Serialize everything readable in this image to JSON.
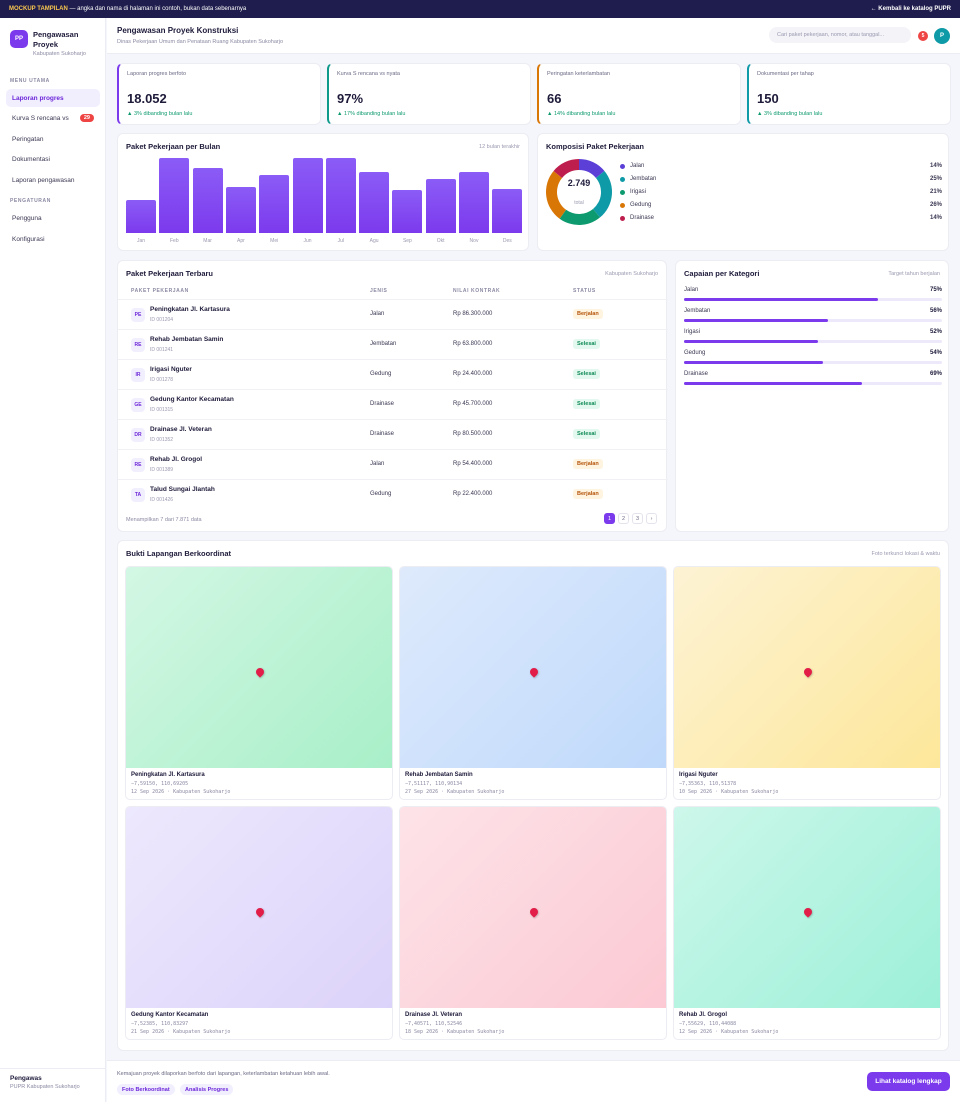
{
  "topbar": {
    "mockup_label": "MOCKUP TAMPILAN",
    "mockup_text": " — angka dan nama di halaman ini contoh, bukan data sebenarnya",
    "back_link": "← Kembali ke katalog PUPR"
  },
  "sidebar": {
    "brand": {
      "logo": "PP",
      "name": "Pengawasan Proyek",
      "sub": "Kabupaten Sukoharjo"
    },
    "section_main": "MENU UTAMA",
    "items_main": [
      {
        "label": "Laporan progres"
      },
      {
        "label": "Kurva S rencana vs",
        "badge": "29"
      },
      {
        "label": "Peringatan"
      },
      {
        "label": "Dokumentasi"
      },
      {
        "label": "Laporan pengawasan"
      }
    ],
    "section_settings": "PENGATURAN",
    "items_settings": [
      {
        "label": "Pengguna"
      },
      {
        "label": "Konfigurasi"
      }
    ],
    "footer": {
      "role": "Pengawas",
      "org": "PUPR Kabupaten Sukoharjo"
    }
  },
  "header": {
    "title": "Pengawasan Proyek Konstruksi",
    "subtitle": "Dinas Pekerjaan Umum dan Penataan Ruang Kabupaten Sukoharjo",
    "search_placeholder": "Cari paket pekerjaan, nomor, atau tanggal...",
    "notif_count": "5",
    "avatar": "P"
  },
  "stats": [
    {
      "label": "Laporan progres berfoto",
      "value": "18.052",
      "delta": "▲ 3% dibanding bulan lalu",
      "accent": "#7c3aed"
    },
    {
      "label": "Kurva S rencana vs nyata",
      "value": "97%",
      "delta": "▲ 17% dibanding bulan lalu",
      "accent": "#0e9a8a"
    },
    {
      "label": "Peringatan keterlambatan",
      "value": "66",
      "delta": "▲ 14% dibanding bulan lalu",
      "accent": "#d97706"
    },
    {
      "label": "Dokumentasi per tahap",
      "value": "150",
      "delta": "▲ 3% dibanding bulan lalu",
      "accent": "#0e9aa7"
    }
  ],
  "bar_chart": {
    "title": "Paket Pekerjaan per Bulan",
    "note": "12 bulan terakhir"
  },
  "donut": {
    "title": "Komposisi Paket Pekerjaan",
    "total": "2.749",
    "total_label": "total"
  },
  "table": {
    "title": "Paket Pekerjaan Terbaru",
    "note": "Kabupaten Sukoharjo",
    "headers": [
      "PAKET PEKERJAAN",
      "JENIS",
      "NILAI KONTRAK",
      "STATUS"
    ],
    "rows": [
      {
        "ini": "PE",
        "name": "Peningkatan Jl. Kartasura",
        "id": "ID 001204",
        "jenis": "Jalan",
        "nilai": "Rp 86.300.000",
        "status": "Berjalan"
      },
      {
        "ini": "RE",
        "name": "Rehab Jembatan Samin",
        "id": "ID 001241",
        "jenis": "Jembatan",
        "nilai": "Rp 63.800.000",
        "status": "Selesai"
      },
      {
        "ini": "IR",
        "name": "Irigasi Nguter",
        "id": "ID 001278",
        "jenis": "Gedung",
        "nilai": "Rp 24.400.000",
        "status": "Selesai"
      },
      {
        "ini": "GE",
        "name": "Gedung Kantor Kecamatan",
        "id": "ID 001315",
        "jenis": "Drainase",
        "nilai": "Rp 45.700.000",
        "status": "Selesai"
      },
      {
        "ini": "DR",
        "name": "Drainase Jl. Veteran",
        "id": "ID 001352",
        "jenis": "Drainase",
        "nilai": "Rp 80.500.000",
        "status": "Selesai"
      },
      {
        "ini": "RE",
        "name": "Rehab Jl. Grogol",
        "id": "ID 001389",
        "jenis": "Jalan",
        "nilai": "Rp 54.400.000",
        "status": "Berjalan"
      },
      {
        "ini": "TA",
        "name": "Talud Sungai Jlantah",
        "id": "ID 001426",
        "jenis": "Gedung",
        "nilai": "Rp 22.400.000",
        "status": "Berjalan"
      }
    ],
    "footer": "Menampilkan 7 dari 7.871 data",
    "pages": [
      "1",
      "2",
      "3",
      "›"
    ]
  },
  "capaian": {
    "title": "Capaian per Kategori",
    "note": "Target tahun berjalan",
    "items": [
      {
        "label": "Jalan",
        "pct_text": "75%",
        "value": 75
      },
      {
        "label": "Jembatan",
        "pct_text": "56%",
        "value": 56
      },
      {
        "label": "Irigasi",
        "pct_text": "52%",
        "value": 52
      },
      {
        "label": "Gedung",
        "pct_text": "54%",
        "value": 54
      },
      {
        "label": "Drainase",
        "pct_text": "69%",
        "value": 69
      }
    ]
  },
  "gallery": {
    "title": "Bukti Lapangan Berkoordinat",
    "note": "Foto terkunci lokasi & waktu",
    "photos": [
      {
        "title": "Peningkatan Jl. Kartasura",
        "coord": "−7,59150, 110,69205",
        "meta": "12 Sep 2026 · Kabupaten Sukoharjo",
        "c1": "#d3f7e4",
        "c2": "#a8efc8"
      },
      {
        "title": "Rehab Jembatan Samin",
        "coord": "−7,51117, 110,90134",
        "meta": "27 Sep 2026 · Kabupaten Sukoharjo",
        "c1": "#deeafc",
        "c2": "#bfd9fb"
      },
      {
        "title": "Irigasi Nguter",
        "coord": "−7,35363, 110,51378",
        "meta": "10 Sep 2026 · Kabupaten Sukoharjo",
        "c1": "#fdf3d4",
        "c2": "#fde79a"
      },
      {
        "title": "Gedung Kantor Kecamatan",
        "coord": "−7,52385, 110,83297",
        "meta": "21 Sep 2026 · Kabupaten Sukoharjo",
        "c1": "#ede8fd",
        "c2": "#dcd3fa"
      },
      {
        "title": "Drainase Jl. Veteran",
        "coord": "−7,40571, 110,52546",
        "meta": "18 Sep 2026 · Kabupaten Sukoharjo",
        "c1": "#fde3e8",
        "c2": "#fcc9d3"
      },
      {
        "title": "Rehab Jl. Grogol",
        "coord": "−7,55629, 110,44088",
        "meta": "12 Sep 2026 · Kabupaten Sukoharjo",
        "c1": "#cdf7ea",
        "c2": "#9cf0d8"
      }
    ]
  },
  "footer": {
    "text": "Kemajuan proyek dilaporkan berfoto dari lapangan, keterlambatan ketahuan lebih awal.",
    "chips": [
      "Foto Berkoordinat",
      "Analisis Progres"
    ],
    "cta": "Lihat katalog lengkap"
  },
  "chart_data": [
    {
      "type": "bar",
      "title": "Paket Pekerjaan per Bulan",
      "categories": [
        "Jan",
        "Feb",
        "Mar",
        "Apr",
        "Mei",
        "Jun",
        "Jul",
        "Agu",
        "Sep",
        "Okt",
        "Nov",
        "Des"
      ],
      "values": [
        44,
        100,
        87,
        61,
        77,
        100,
        100,
        82,
        58,
        72,
        81,
        59
      ],
      "ylim": [
        0,
        100
      ]
    },
    {
      "type": "pie",
      "title": "Komposisi Paket Pekerjaan",
      "categories": [
        "Jalan",
        "Jembatan",
        "Irigasi",
        "Gedung",
        "Drainase"
      ],
      "values": [
        14,
        25,
        21,
        26,
        14
      ],
      "labels": [
        "14%",
        "25%",
        "21%",
        "26%",
        "14%"
      ],
      "colors": [
        "#5b3fd6",
        "#0e9aa7",
        "#0e9a6f",
        "#d97706",
        "#be1e4d"
      ]
    }
  ]
}
